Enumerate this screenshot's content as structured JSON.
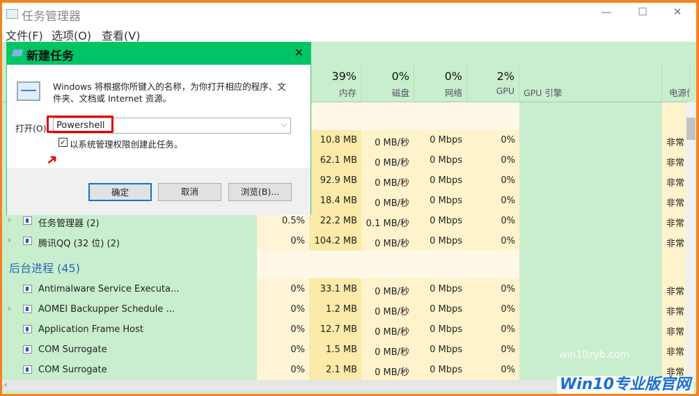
{
  "window": {
    "title": "任务管理器",
    "menu": [
      "文件(F)",
      "选项(O)",
      "查看(V)"
    ],
    "controls": {
      "minimize": "—",
      "maximize": "☐",
      "close": "✕"
    }
  },
  "columns": [
    {
      "pct": "39%",
      "label": "内存"
    },
    {
      "pct": "0%",
      "label": "磁盘"
    },
    {
      "pct": "0%",
      "label": "网络"
    },
    {
      "pct": "2%",
      "label": "GPU"
    },
    {
      "pct": "",
      "label": "GPU 引擎"
    },
    {
      "pct": "",
      "label": "电源使"
    }
  ],
  "apps_rows": [
    {
      "name": "",
      "cpu": "",
      "mem": "10.8 MB",
      "disk": "0 MB/秒",
      "net": "0 Mbps",
      "gpu": "0%",
      "power": "非常"
    },
    {
      "name": "",
      "cpu": "",
      "mem": "62.1 MB",
      "disk": "0 MB/秒",
      "net": "0 Mbps",
      "gpu": "0%",
      "power": "非常"
    },
    {
      "name": "",
      "cpu": "",
      "mem": "92.9 MB",
      "disk": "0 MB/秒",
      "net": "0 Mbps",
      "gpu": "0%",
      "power": "非常"
    },
    {
      "name": "",
      "cpu": "",
      "mem": "18.4 MB",
      "disk": "0 MB/秒",
      "net": "0 Mbps",
      "gpu": "0%",
      "power": "非常"
    },
    {
      "name": "任务管理器 (2)",
      "cpu": "0.5%",
      "mem": "22.2 MB",
      "disk": "0.1 MB/秒",
      "net": "0 Mbps",
      "gpu": "0%",
      "power": "非常"
    },
    {
      "name": "腾讯QQ (32 位) (2)",
      "cpu": "0%",
      "mem": "104.2 MB",
      "disk": "0 MB/秒",
      "net": "0 Mbps",
      "gpu": "0%",
      "power": "非常"
    }
  ],
  "background_section": "后台进程 (45)",
  "bg_rows": [
    {
      "name": "Antimalware Service Executa...",
      "cpu": "0%",
      "mem": "33.1 MB",
      "disk": "0 MB/秒",
      "net": "0 Mbps",
      "gpu": "0%",
      "power": "非常"
    },
    {
      "name": "AOMEI Backupper Schedule ...",
      "cpu": "0%",
      "mem": "1.2 MB",
      "disk": "0 MB/秒",
      "net": "0 Mbps",
      "gpu": "0%",
      "power": "非常"
    },
    {
      "name": "Application Frame Host",
      "cpu": "0%",
      "mem": "12.7 MB",
      "disk": "0 MB/秒",
      "net": "0 Mbps",
      "gpu": "0%",
      "power": "非常"
    },
    {
      "name": "COM Surrogate",
      "cpu": "0%",
      "mem": "1.5 MB",
      "disk": "0 MB/秒",
      "net": "0 Mbps",
      "gpu": "0%",
      "power": "非常"
    },
    {
      "name": "COM Surrogate",
      "cpu": "0%",
      "mem": "2.1 MB",
      "disk": "0 MB/秒",
      "net": "0 Mbps",
      "gpu": "0%",
      "power": "非常"
    }
  ],
  "dialog": {
    "title": "新建任务",
    "description": "Windows 将根据你所键入的名称，为你打开相应的程序、文件夹、文档或 Internet 资源。",
    "open_label": "打开(O):",
    "open_value": "Powershell",
    "admin_checkbox": "以系统管理权限创建此任务。",
    "admin_checked": true,
    "ok": "确定",
    "cancel": "取消",
    "browse": "浏览(B)..."
  },
  "watermark": {
    "small": "win10zyb.com",
    "large": "Win10专业版官网"
  },
  "colors": {
    "dialog_title": "#00c566",
    "highlight": "#e00000",
    "border": "#f58220"
  }
}
